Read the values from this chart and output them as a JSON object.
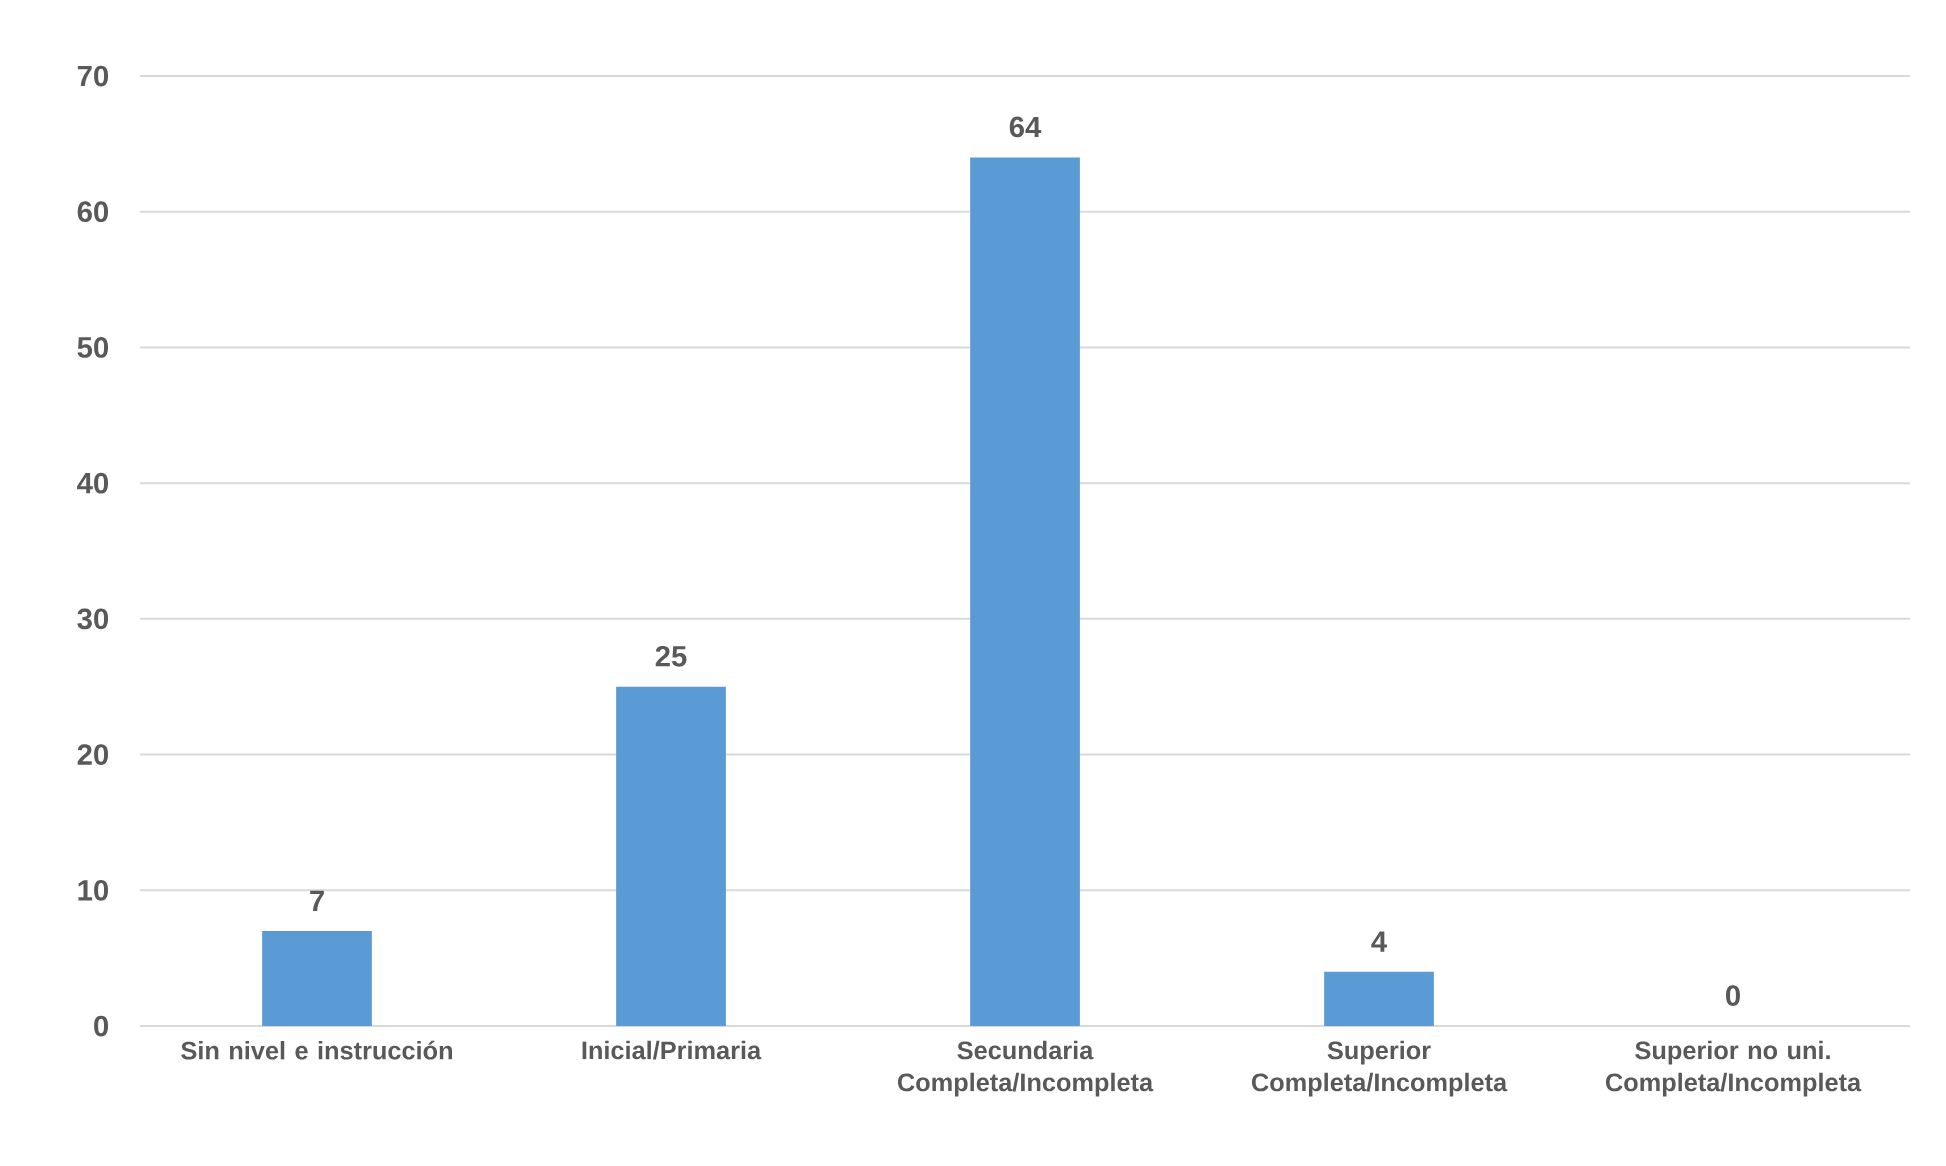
{
  "chart_data": {
    "type": "bar",
    "categories": [
      "Sin nivel e instrucción",
      "Inicial/Primaria",
      "Secundaria Completa/Incompleta",
      "Superior Completa/Incompleta",
      "Superior no uni. Completa/Incompleta"
    ],
    "values": [
      7,
      25,
      64,
      4,
      0
    ],
    "color": "#5b9bd5",
    "ylim": [
      0,
      70
    ],
    "yticks": [
      0,
      10,
      20,
      30,
      40,
      50,
      60,
      70
    ],
    "grid": "y",
    "data_labels": true
  }
}
